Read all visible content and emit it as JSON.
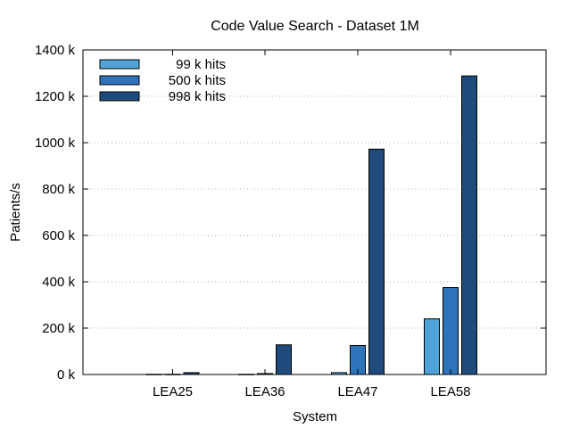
{
  "chart_data": {
    "type": "bar",
    "title": "Code Value Search - Dataset 1M",
    "xlabel": "System",
    "ylabel": "Patients/s",
    "categories": [
      "LEA25",
      "LEA36",
      "LEA47",
      "LEA58"
    ],
    "ylim": [
      0,
      1400
    ],
    "yticks": [
      0,
      200,
      400,
      600,
      800,
      1000,
      1200,
      1400
    ],
    "ytick_labels": [
      "0 k",
      "200 k",
      "400 k",
      "600 k",
      "800 k",
      "1000 k",
      "1200 k",
      "1400 k"
    ],
    "grid": true,
    "legend_position": "top-left",
    "series": [
      {
        "name": "99 k hits",
        "color": "#4fa3d9",
        "values": [
          1,
          1,
          8,
          240
        ]
      },
      {
        "name": "500 k hits",
        "color": "#2e74bb",
        "values": [
          1,
          4,
          125,
          375
        ]
      },
      {
        "name": "998 k hits",
        "color": "#1f4b7c",
        "values": [
          8,
          128,
          972,
          1288
        ]
      }
    ]
  }
}
